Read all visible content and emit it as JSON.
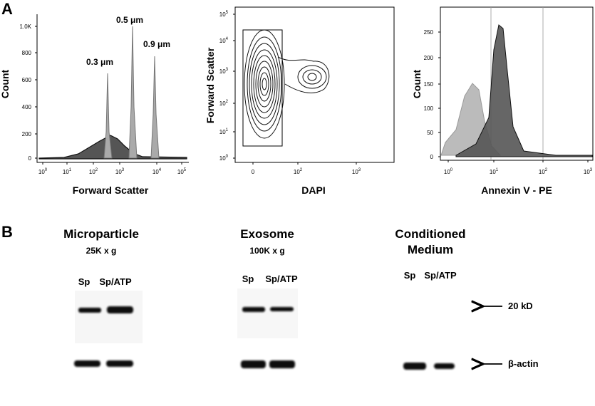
{
  "panel_a": {
    "label": "A",
    "plots": [
      {
        "y_label": "Count",
        "x_label": "Forward Scatter",
        "y_ticks": [
          [
            "0"
          ],
          [
            "200"
          ],
          [
            "400"
          ],
          [
            "600"
          ],
          [
            "800"
          ],
          [
            "1.0K"
          ]
        ],
        "x_ticks": [
          [
            "10",
            "0"
          ],
          [
            "10",
            "1"
          ],
          [
            "10",
            "2"
          ],
          [
            "10",
            "3"
          ],
          [
            "10",
            "4"
          ],
          [
            "10",
            "5"
          ]
        ],
        "annotations": [
          "0.3 μm",
          "0.5 μm",
          "0.9 μm"
        ]
      },
      {
        "y_label": "Forward Scatter",
        "x_label": "DAPI",
        "y_ticks": [
          [
            "10",
            "0"
          ],
          [
            "10",
            "1"
          ],
          [
            "10",
            "2"
          ],
          [
            "10",
            "3"
          ],
          [
            "10",
            "4"
          ],
          [
            "10",
            "5"
          ]
        ],
        "x_ticks": [
          [
            "0"
          ],
          [
            "10",
            "2"
          ],
          [
            "10",
            "3"
          ]
        ]
      },
      {
        "y_label": "Count",
        "x_label": "Annexin V - PE",
        "y_ticks": [
          [
            "0"
          ],
          [
            "50"
          ],
          [
            "100"
          ],
          [
            "150"
          ],
          [
            "200"
          ],
          [
            "250"
          ]
        ],
        "x_ticks": [
          [
            "10",
            "0"
          ],
          [
            "10",
            "1"
          ],
          [
            "10",
            "2"
          ],
          [
            "10",
            "3"
          ]
        ]
      }
    ]
  },
  "panel_b": {
    "label": "B",
    "groups": [
      {
        "title": [
          "Microparticle"
        ],
        "subtitle": "25K x g",
        "lanes": [
          "Sp",
          "Sp/ATP"
        ]
      },
      {
        "title": [
          "Exosome"
        ],
        "subtitle": "100K x g",
        "lanes": [
          "Sp",
          "Sp/ATP"
        ]
      },
      {
        "title": [
          "Conditioned",
          "Medium"
        ],
        "lanes": [
          "Sp",
          "Sp/ATP"
        ]
      }
    ],
    "markers": [
      "20 kD",
      "β-actin"
    ]
  }
}
